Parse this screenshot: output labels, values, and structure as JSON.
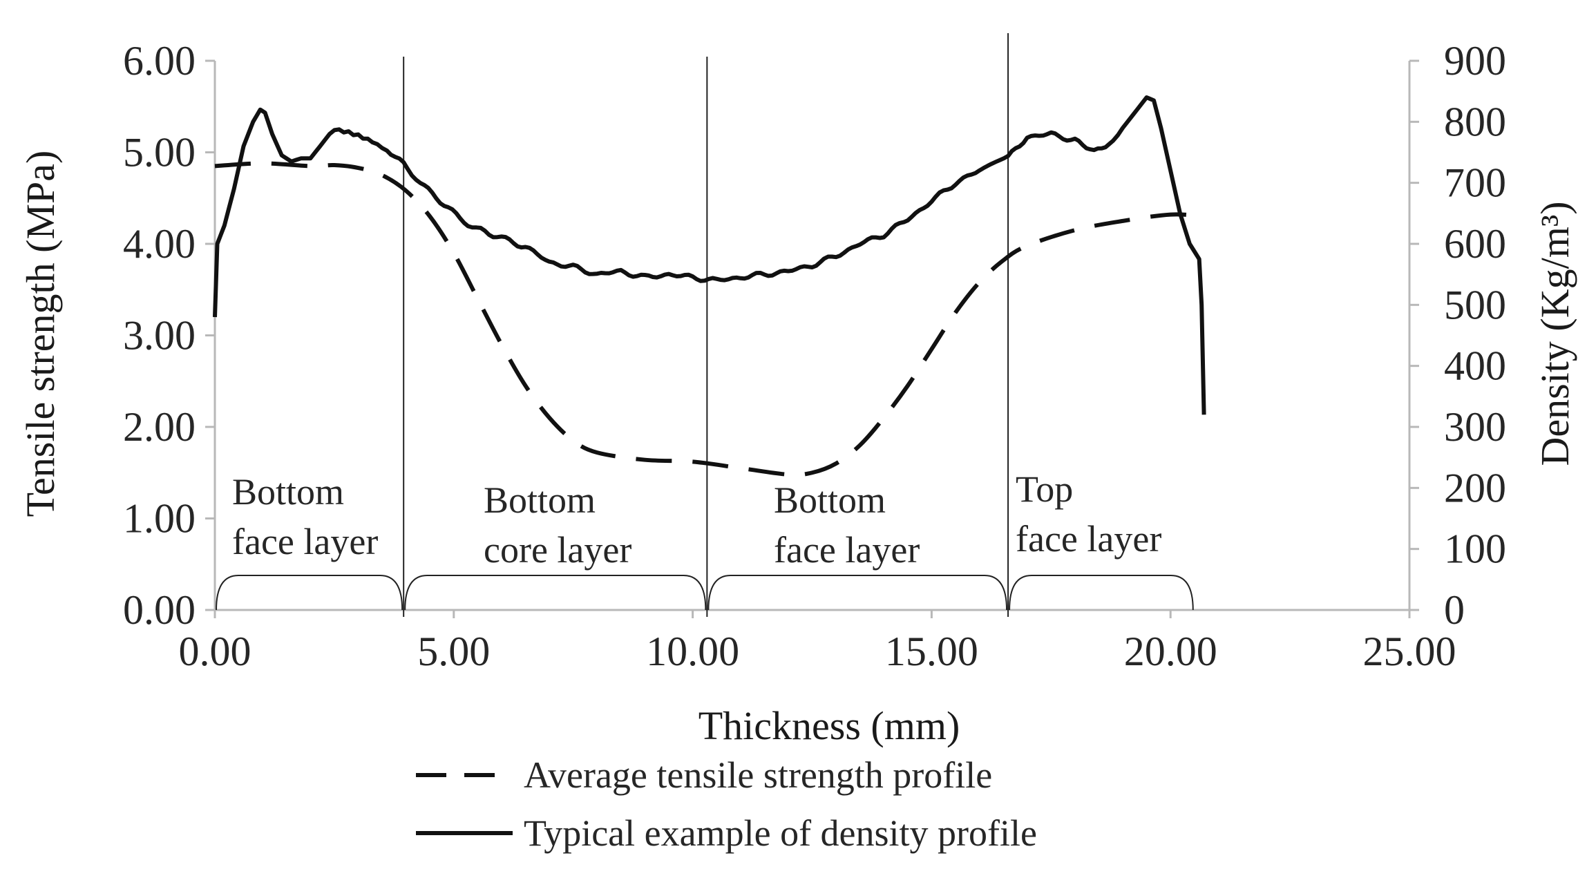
{
  "chart_data": {
    "type": "line",
    "title": "",
    "xlabel": "Thickness (mm)",
    "ylabel_left": "Tensile strength (MPa)",
    "ylabel_right": "Density (Kg/m³)",
    "xlim": [
      0,
      25
    ],
    "ylim_left": [
      0,
      6
    ],
    "ylim_right": [
      0,
      900
    ],
    "x_ticks": [
      "0.00",
      "5.00",
      "10.00",
      "15.00",
      "20.00",
      "25.00"
    ],
    "y_left_ticks": [
      "0.00",
      "1.00",
      "2.00",
      "3.00",
      "4.00",
      "5.00",
      "6.00"
    ],
    "y_right_ticks": [
      "0",
      "100",
      "200",
      "300",
      "400",
      "500",
      "600",
      "700",
      "800",
      "900"
    ],
    "layer_boundaries": [
      0,
      3.95,
      10.3,
      16.6,
      20.5
    ],
    "layers": [
      {
        "line1": "Bottom",
        "line2": "face layer"
      },
      {
        "line1": "Bottom",
        "line2": "core layer"
      },
      {
        "line1": "Bottom",
        "line2": "face layer"
      },
      {
        "line1": "Top",
        "line2": "face layer"
      }
    ],
    "series": [
      {
        "name": "Average tensile strength profile",
        "axis": "left",
        "style": "dashed",
        "x": [
          0,
          1,
          2,
          2.5,
          3,
          3.5,
          4,
          4.5,
          5,
          5.5,
          6,
          6.5,
          7,
          7.5,
          8,
          9,
          10,
          11,
          12,
          12.5,
          13,
          13.5,
          14,
          14.5,
          15,
          15.5,
          16,
          16.5,
          17,
          18,
          19,
          20,
          20.7
        ],
        "values": [
          4.85,
          4.88,
          4.85,
          4.86,
          4.83,
          4.75,
          4.58,
          4.3,
          3.9,
          3.4,
          2.9,
          2.45,
          2.1,
          1.85,
          1.72,
          1.64,
          1.62,
          1.55,
          1.48,
          1.5,
          1.6,
          1.8,
          2.1,
          2.45,
          2.85,
          3.25,
          3.58,
          3.82,
          3.98,
          4.15,
          4.25,
          4.32,
          4.3
        ]
      },
      {
        "name": "Typical example of density profile",
        "axis": "right",
        "style": "solid",
        "x": [
          0,
          0.05,
          0.2,
          0.4,
          0.6,
          0.8,
          0.95,
          1.05,
          1.2,
          1.4,
          1.6,
          1.8,
          2.0,
          2.2,
          2.5,
          2.8,
          3.0,
          3.3,
          3.6,
          3.95,
          4.3,
          4.8,
          5.3,
          6.0,
          6.5,
          7.0,
          7.5,
          8.0,
          8.5,
          9.0,
          9.5,
          10.0,
          10.5,
          11.0,
          11.5,
          12.0,
          12.5,
          13.0,
          13.5,
          14.0,
          14.5,
          15.0,
          15.5,
          16.0,
          16.6,
          17.0,
          17.5,
          18.0,
          18.4,
          18.8,
          19.0,
          19.3,
          19.5,
          19.65,
          19.8,
          20.0,
          20.2,
          20.4,
          20.6,
          20.65,
          20.7
        ],
        "values": [
          480,
          600,
          630,
          690,
          760,
          800,
          820,
          815,
          780,
          745,
          735,
          740,
          740,
          760,
          790,
          785,
          780,
          770,
          755,
          730,
          700,
          665,
          630,
          610,
          595,
          570,
          562,
          550,
          555,
          545,
          550,
          545,
          540,
          545,
          550,
          555,
          565,
          580,
          600,
          615,
          640,
          670,
          700,
          720,
          745,
          775,
          780,
          770,
          750,
          765,
          790,
          820,
          840,
          835,
          790,
          720,
          650,
          600,
          575,
          500,
          320
        ]
      }
    ],
    "legend": [
      {
        "label": "Average tensile strength profile",
        "style": "dashed"
      },
      {
        "label": "Typical example of density profile",
        "style": "solid"
      }
    ],
    "legend_position": "bottom-center",
    "grid": false
  }
}
